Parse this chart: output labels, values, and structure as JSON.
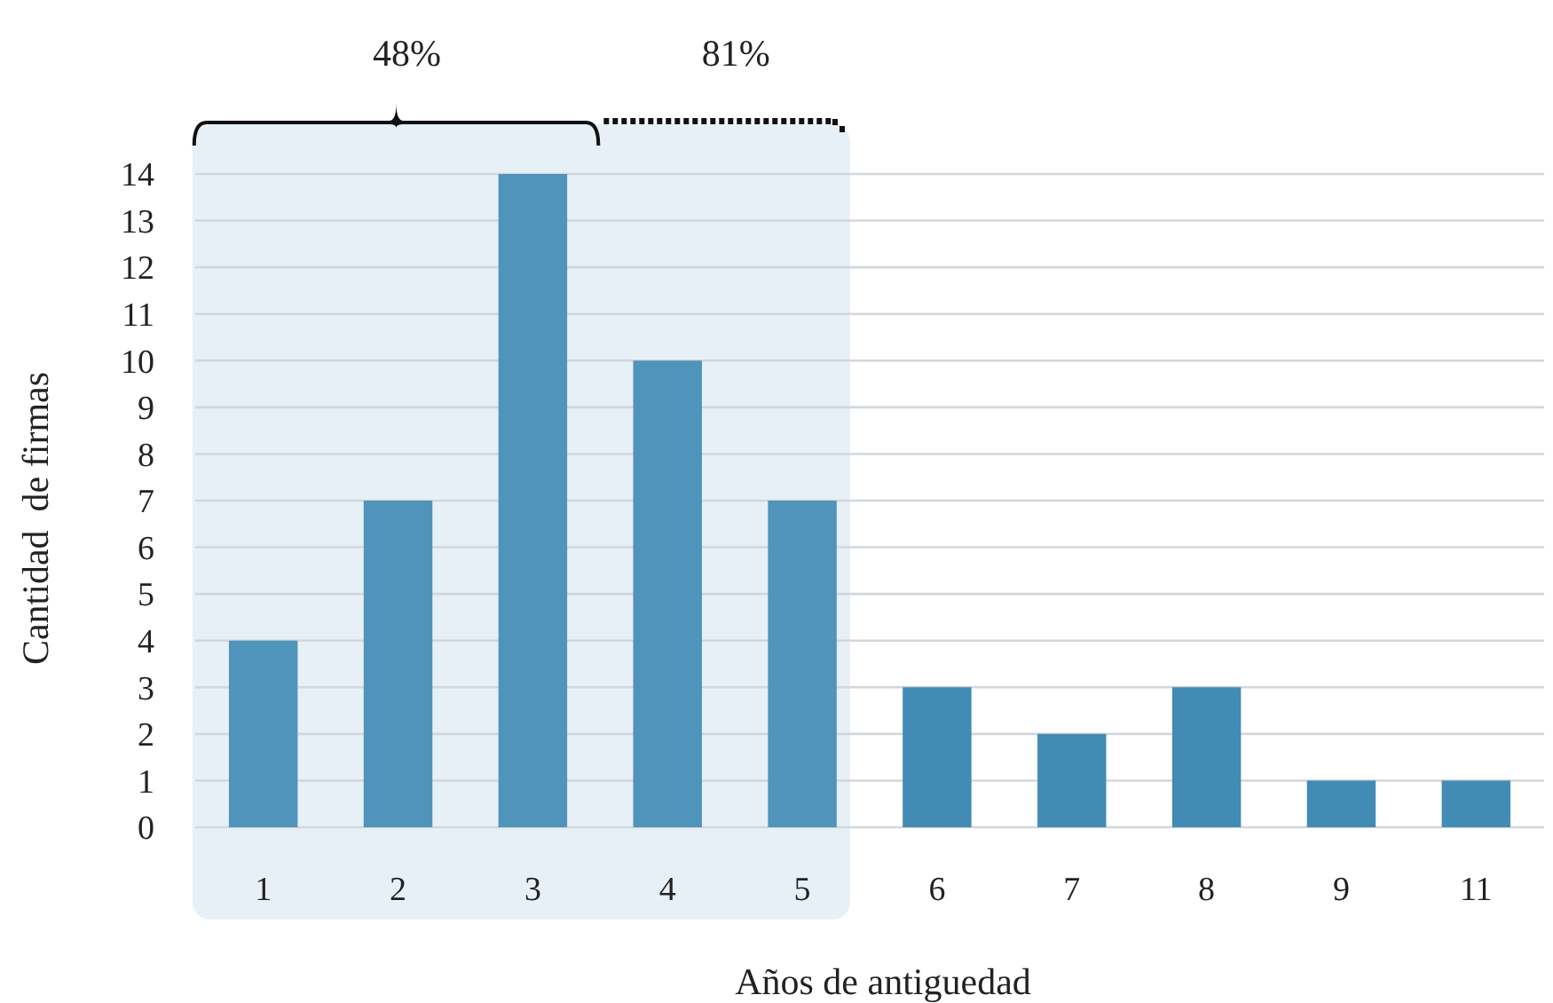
{
  "chart_data": {
    "type": "bar",
    "xlabel": "Años de antiguedad",
    "ylabel": "Cantidad  de firmas",
    "categories": [
      "1",
      "2",
      "3",
      "4",
      "5",
      "6",
      "7",
      "8",
      "9",
      "11"
    ],
    "values": [
      4,
      7,
      14,
      10,
      7,
      3,
      2,
      3,
      1,
      1
    ],
    "colors": [
      "#4e94bb",
      "#4e94bb",
      "#4e94bb",
      "#4e94bb",
      "#4e94bb",
      "#428bb4",
      "#428bb4",
      "#428bb4",
      "#428bb4",
      "#428bb4"
    ],
    "ylim": [
      0,
      14
    ],
    "yticks": [
      0,
      1,
      2,
      3,
      4,
      5,
      6,
      7,
      8,
      9,
      10,
      11,
      12,
      13,
      14
    ],
    "grid": "y",
    "bands": [
      {
        "axis": "x",
        "from": "1",
        "to": "5",
        "color": "#e7f0f6"
      }
    ],
    "annotations": [
      "48%",
      "81%"
    ]
  }
}
